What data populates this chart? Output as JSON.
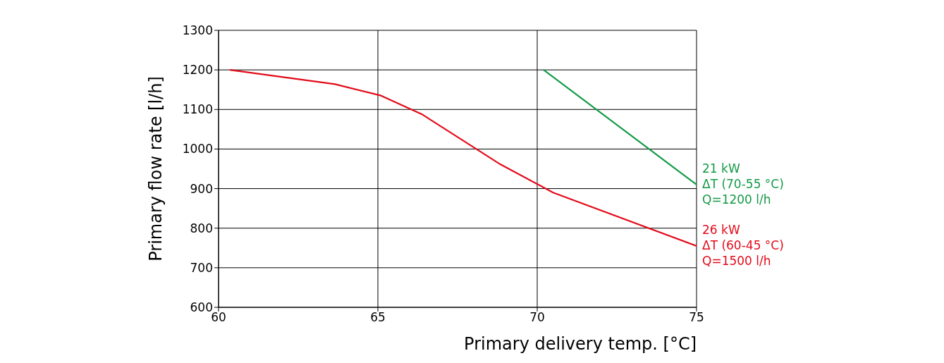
{
  "chart_data": {
    "type": "line",
    "xlabel": "Primary delivery temp. [°C]",
    "ylabel": "Primary flow rate [l/h]",
    "xlim": [
      60,
      75
    ],
    "xticks": [
      60,
      65,
      70,
      75
    ],
    "ylim": [
      600,
      1300
    ],
    "yticks": [
      600,
      700,
      800,
      900,
      1000,
      1100,
      1200,
      1300
    ],
    "grid": true,
    "marker": "none",
    "line_style": "solid",
    "series": [
      {
        "name": "21 kW\nΔT (70-55 °C)\nQ=1200 l/h",
        "color": "#149a48",
        "x": [
          70.2,
          75
        ],
        "values": [
          1200,
          910
        ]
      },
      {
        "name": "26 kW\nΔT (60-45 °C)\nQ=1500 l/h",
        "color": "#e30a1a",
        "x": [
          60.35,
          63.65,
          65.1,
          66.4,
          68.85,
          70.5,
          75
        ],
        "values": [
          1200,
          1164,
          1135,
          1087,
          961,
          890,
          755
        ]
      }
    ]
  }
}
